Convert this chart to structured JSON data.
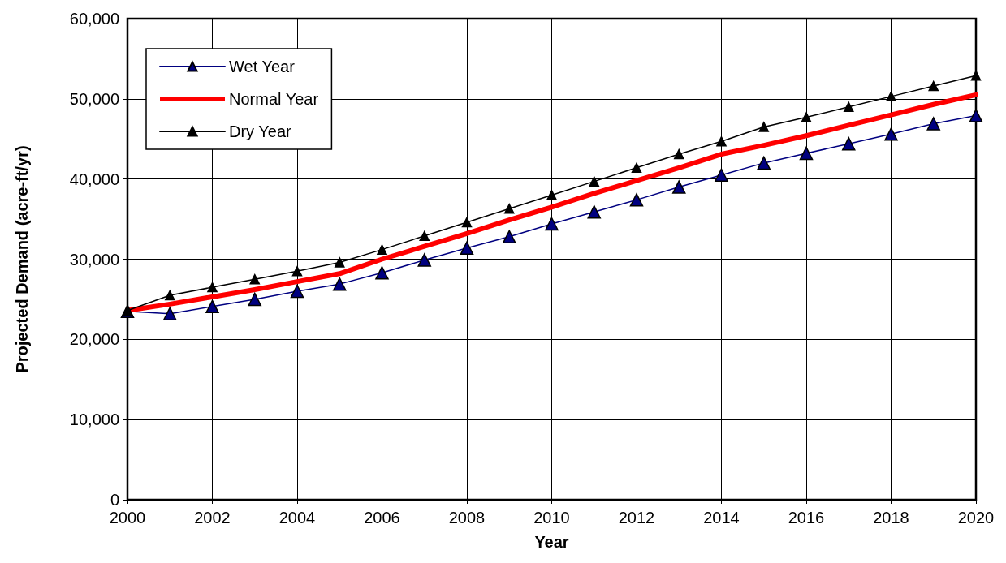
{
  "chart_data": {
    "type": "line",
    "xlabel": "Year",
    "ylabel": "Projected Demand (acre-ft/yr)",
    "x": [
      2000,
      2001,
      2002,
      2003,
      2004,
      2005,
      2006,
      2007,
      2008,
      2009,
      2010,
      2011,
      2012,
      2013,
      2014,
      2015,
      2016,
      2017,
      2018,
      2019,
      2020
    ],
    "series": [
      {
        "name": "Wet Year",
        "color": "#000080",
        "marker": "triangle",
        "values": [
          23500,
          23200,
          24100,
          25000,
          26000,
          26900,
          28300,
          29900,
          31400,
          32800,
          34400,
          35900,
          37400,
          39000,
          40500,
          42000,
          43200,
          44400,
          45600,
          46900,
          47900
        ]
      },
      {
        "name": "Normal Year",
        "color": "#ff0000",
        "marker": "none",
        "values": [
          23600,
          24400,
          25300,
          26200,
          27200,
          28200,
          30000,
          31600,
          33200,
          34900,
          36500,
          38200,
          39800,
          41400,
          43100,
          44200,
          45400,
          46700,
          48000,
          49300,
          50500
        ]
      },
      {
        "name": "Dry Year",
        "color": "#000000",
        "marker": "triangle",
        "values": [
          23600,
          25500,
          26500,
          27500,
          28500,
          29600,
          31200,
          32900,
          34600,
          36300,
          38000,
          39700,
          41400,
          43100,
          44700,
          46500,
          47700,
          49000,
          50300,
          51600,
          52900
        ]
      }
    ],
    "xlim": [
      2000,
      2020
    ],
    "xticks": [
      2000,
      2002,
      2004,
      2006,
      2008,
      2010,
      2012,
      2014,
      2016,
      2018,
      2020
    ],
    "ylim": [
      0,
      60000
    ],
    "yticks": [
      0,
      {
        "value": 10000,
        "label": "10,000"
      },
      {
        "value": 20000,
        "label": "20,000"
      },
      {
        "value": 30000,
        "label": "30,000"
      },
      {
        "value": 40000,
        "label": "40,000"
      },
      {
        "value": 50000,
        "label": "50,000"
      },
      {
        "value": 60000,
        "label": "60,000"
      }
    ],
    "grid": true,
    "legend": "top left",
    "line_style": "solid"
  }
}
